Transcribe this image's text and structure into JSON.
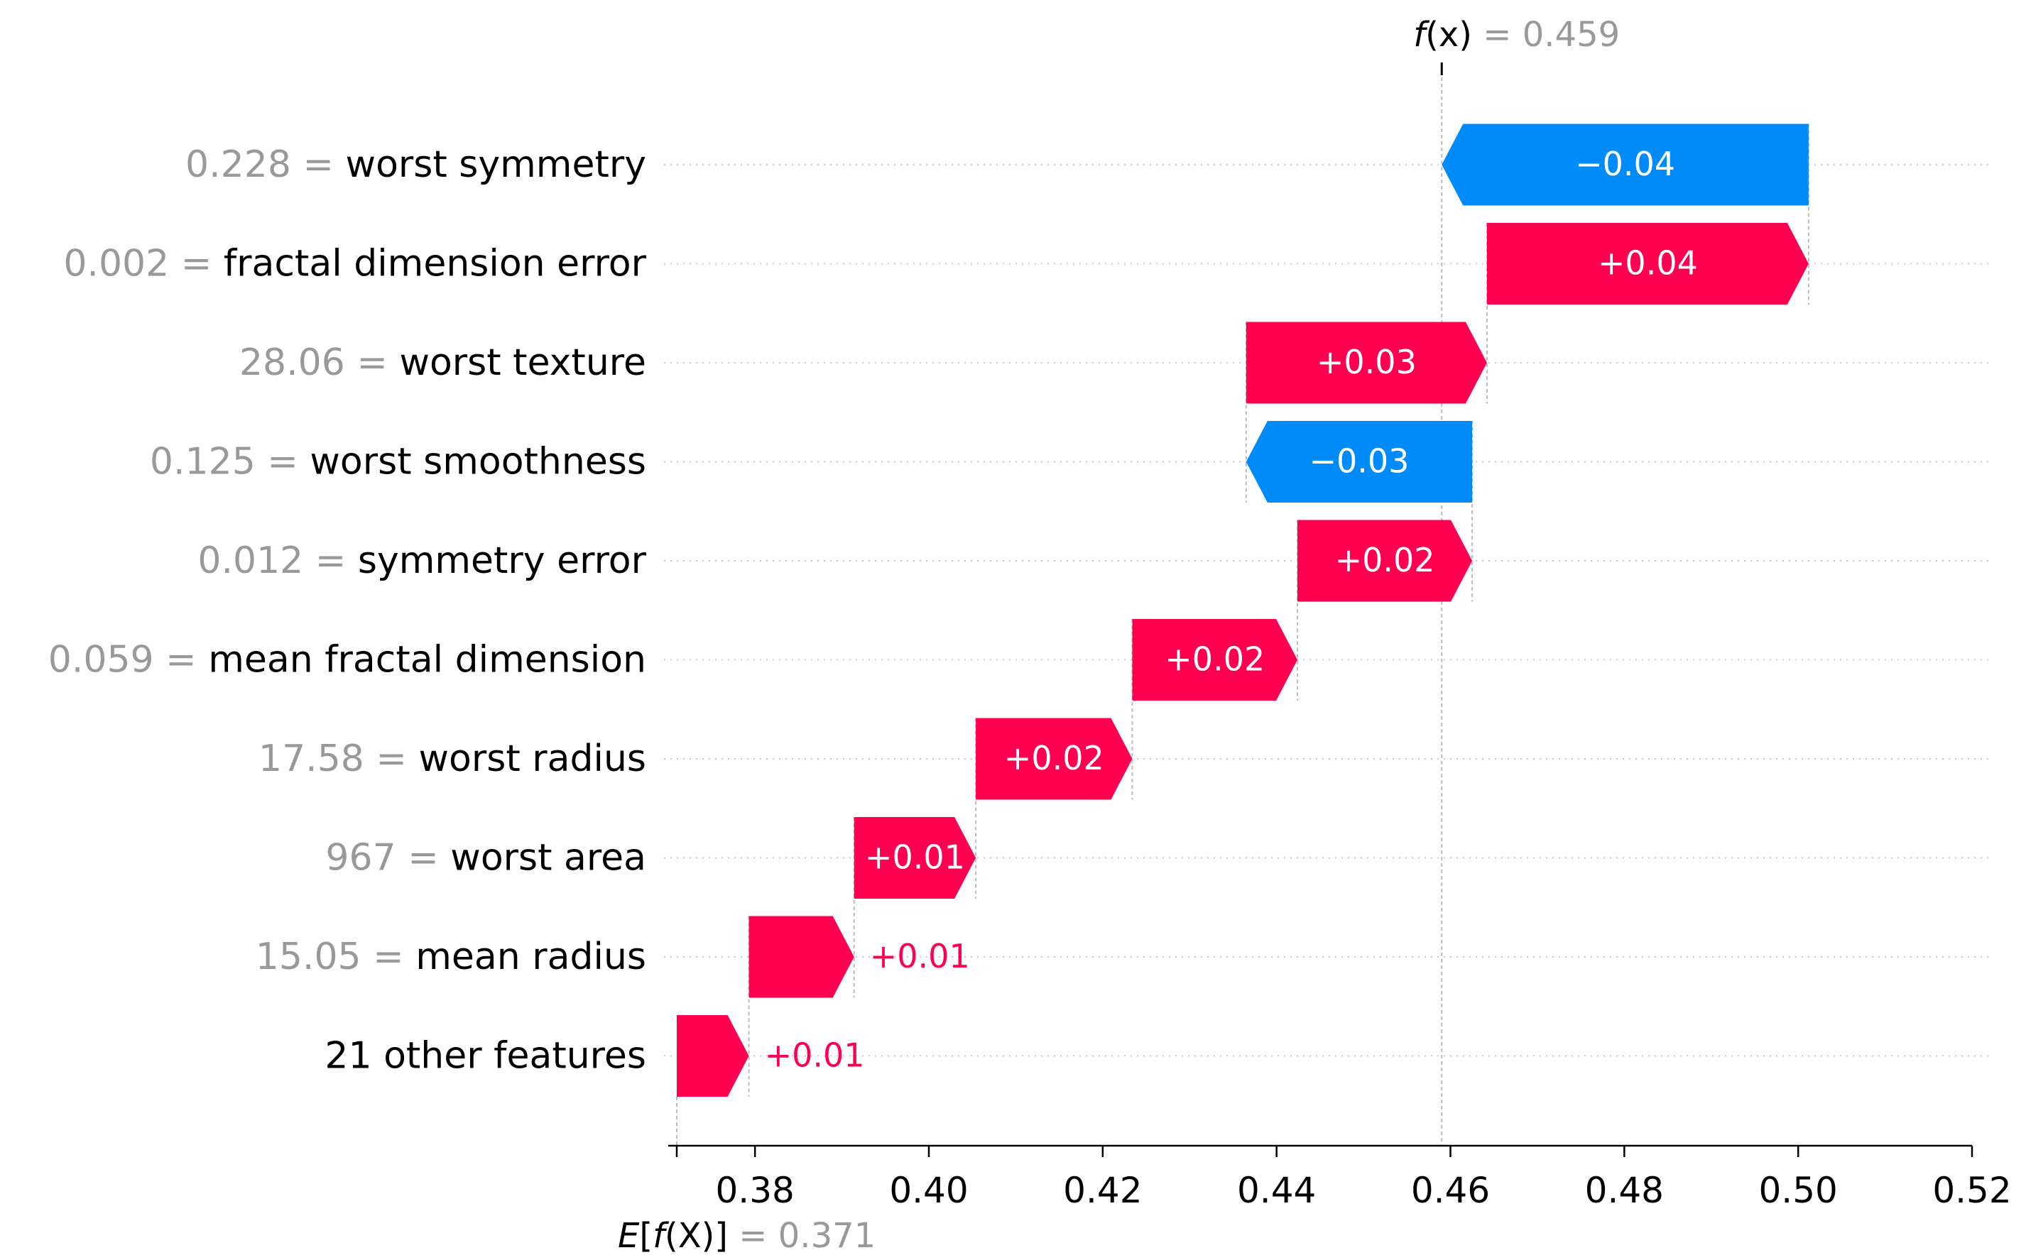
{
  "chart_data": {
    "type": "waterfall",
    "fx": {
      "label_prefix": "f",
      "label_var": "(x)",
      "label_value": " = 0.459",
      "value": 0.459
    },
    "efx": {
      "label_prefix": "E",
      "label_open": "[",
      "label_f": "f",
      "label_var": "(X)",
      "label_close": "]",
      "label_value": " = 0.371",
      "value": 0.371
    },
    "xlim": [
      0.371,
      0.52
    ],
    "xticks": [
      {
        "value": 0.38,
        "label": "0.38"
      },
      {
        "value": 0.4,
        "label": "0.40"
      },
      {
        "value": 0.42,
        "label": "0.42"
      },
      {
        "value": 0.44,
        "label": "0.44"
      },
      {
        "value": 0.46,
        "label": "0.46"
      },
      {
        "value": 0.48,
        "label": "0.48"
      },
      {
        "value": 0.5,
        "label": "0.50"
      },
      {
        "value": 0.52,
        "label": "0.52"
      }
    ],
    "features": [
      {
        "value_label": "0.228",
        "name": "worst symmetry",
        "start": 0.5012,
        "end": 0.459,
        "label": "−0.04"
      },
      {
        "value_label": "0.002",
        "name": "fractal dimension error",
        "start": 0.4642,
        "end": 0.5012,
        "label": "+0.04"
      },
      {
        "value_label": "28.06",
        "name": "worst texture",
        "start": 0.4365,
        "end": 0.4642,
        "label": "+0.03"
      },
      {
        "value_label": "0.125",
        "name": "worst smoothness",
        "start": 0.4625,
        "end": 0.4365,
        "label": "−0.03"
      },
      {
        "value_label": "0.012",
        "name": "symmetry error",
        "start": 0.4424,
        "end": 0.4625,
        "label": "+0.02"
      },
      {
        "value_label": "0.059",
        "name": "mean fractal dimension",
        "start": 0.4234,
        "end": 0.4424,
        "label": "+0.02"
      },
      {
        "value_label": "17.58",
        "name": "worst radius",
        "start": 0.4054,
        "end": 0.4234,
        "label": "+0.02"
      },
      {
        "value_label": "967",
        "name": "worst area",
        "start": 0.3914,
        "end": 0.4054,
        "label": "+0.01"
      },
      {
        "value_label": "15.05",
        "name": "mean radius",
        "start": 0.3793,
        "end": 0.3914,
        "label": "+0.01"
      },
      {
        "value_label": "",
        "name": "21 other features",
        "start": 0.371,
        "end": 0.3793,
        "label": "+0.01"
      }
    ],
    "colors": {
      "positive": "#ff0051",
      "negative": "#008bfb",
      "value_gray": "#999999",
      "text": "#000000",
      "grid": "#cccccc"
    }
  }
}
